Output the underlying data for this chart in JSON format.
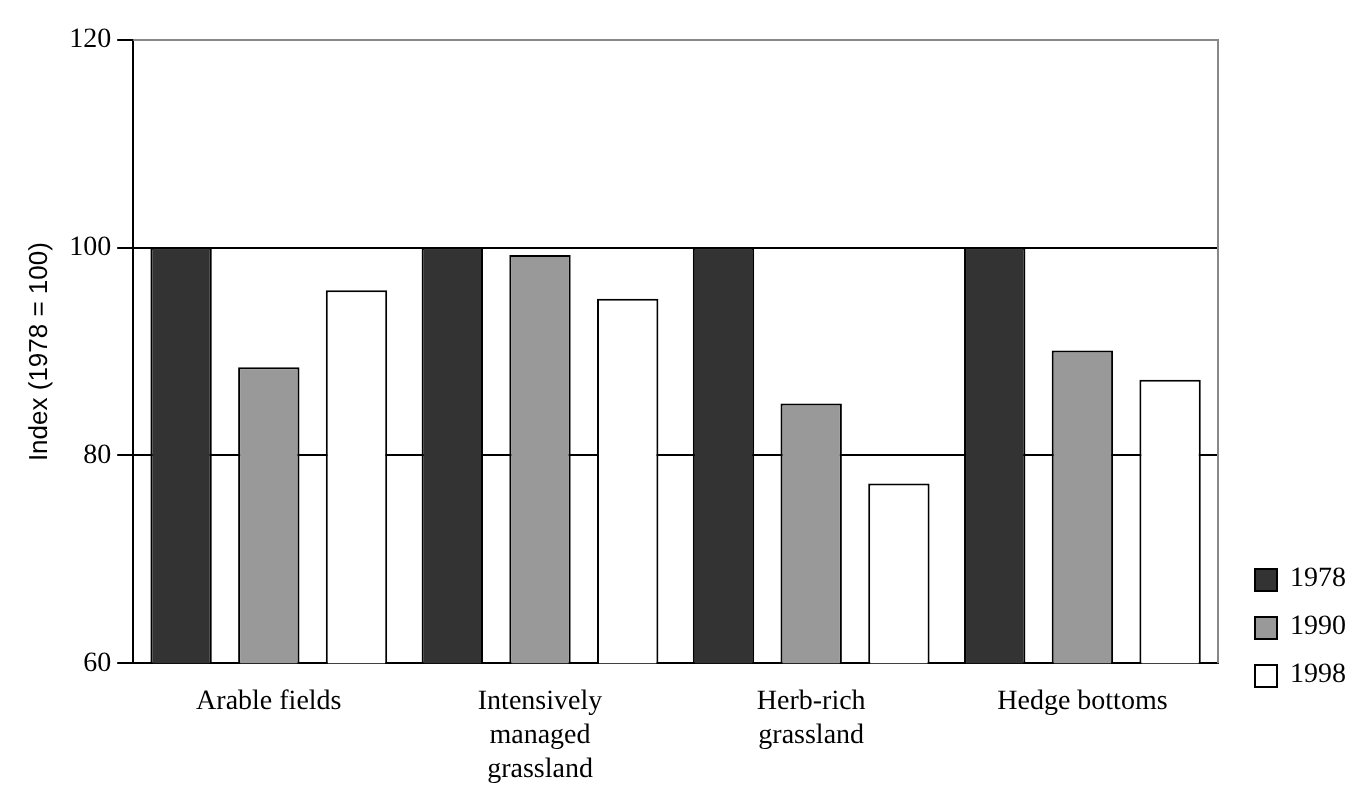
{
  "chart_data": {
    "type": "bar",
    "ylabel": "Index (1978 = 100)",
    "categories": [
      "Arable fields",
      "Intensively managed grassland",
      "Herb-rich grassland",
      "Hedge bottoms"
    ],
    "series": [
      {
        "name": "1978",
        "color": "#333333",
        "values": [
          100,
          100,
          100,
          100
        ]
      },
      {
        "name": "1990",
        "color": "#999999",
        "values": [
          88.5,
          99.3,
          85.0,
          90.1
        ]
      },
      {
        "name": "1998",
        "color": "#ffffff",
        "values": [
          95.9,
          95.1,
          77.3,
          87.3
        ]
      }
    ],
    "ylim": [
      60,
      120
    ],
    "yticks": [
      60,
      80,
      100,
      120
    ],
    "grid": "y",
    "legend": "right"
  }
}
